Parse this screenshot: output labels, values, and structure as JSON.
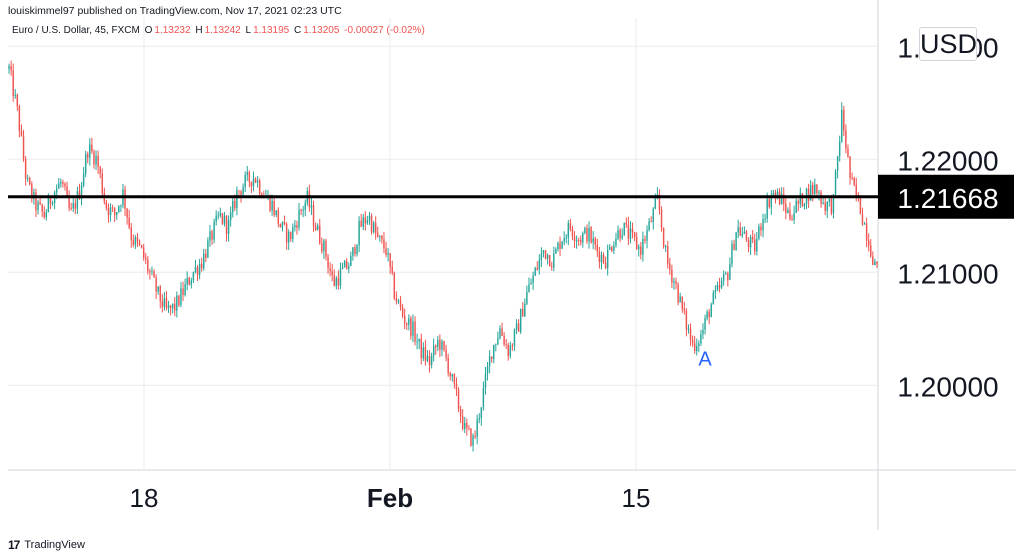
{
  "header": {
    "publisher_line": "louiskimmel97 published on TradingView.com, Nov 17, 2021 02:23 UTC"
  },
  "ohlc": {
    "symbol": "Euro / U.S. Dollar, 45, FXCM",
    "open_label": "O",
    "open": "1.13232",
    "high_label": "H",
    "high": "1.13242",
    "low_label": "L",
    "low": "1.13195",
    "close_label": "C",
    "close": "1.13205",
    "change": "-0.00027 (-0.02%)"
  },
  "currency_badge": "USD",
  "price_tag": "1.21668",
  "annotation": "A",
  "footer": {
    "brand": "TradingView",
    "logo_glyph": "17"
  },
  "colors": {
    "up": "#26a69a",
    "down": "#ef5350",
    "annotation": "#2962ff",
    "hline": "#000000",
    "grid": "#e9ebef"
  },
  "chart_data": {
    "type": "candlestick",
    "title": "",
    "xlabel": "",
    "ylabel": "",
    "y_axis_labels": [
      "1.23000",
      "1.22000",
      "1.21000",
      "1.20000"
    ],
    "y_ticks": [
      1.23,
      1.22,
      1.21,
      1.2
    ],
    "x_tick_labels": [
      "18",
      "Feb",
      "15"
    ],
    "ylim": [
      1.1925,
      1.2325
    ],
    "horizontal_line": {
      "value": 1.21668,
      "label": "1.21668"
    },
    "annotation": {
      "text": "A",
      "near_value": 1.203
    },
    "price_path": [
      1.228,
      1.224,
      1.218,
      1.216,
      1.215,
      1.217,
      1.218,
      1.215,
      1.217,
      1.221,
      1.22,
      1.216,
      1.215,
      1.217,
      1.213,
      1.212,
      1.21,
      1.208,
      1.2065,
      1.207,
      1.2085,
      1.21,
      1.211,
      1.213,
      1.215,
      1.214,
      1.217,
      1.218,
      1.2185,
      1.217,
      1.216,
      1.214,
      1.213,
      1.215,
      1.2165,
      1.214,
      1.212,
      1.209,
      1.21,
      1.211,
      1.214,
      1.215,
      1.213,
      1.212,
      1.208,
      1.206,
      1.205,
      1.203,
      1.202,
      1.204,
      1.202,
      1.199,
      1.196,
      1.195,
      1.199,
      1.203,
      1.205,
      1.203,
      1.205,
      1.208,
      1.21,
      1.212,
      1.211,
      1.213,
      1.214,
      1.213,
      1.2135,
      1.212,
      1.211,
      1.213,
      1.214,
      1.213,
      1.212,
      1.214,
      1.2165,
      1.211,
      1.209,
      1.206,
      1.2035,
      1.2045,
      1.207,
      1.2085,
      1.21,
      1.214,
      1.213,
      1.212,
      1.215,
      1.217,
      1.2165,
      1.215,
      1.216,
      1.217,
      1.2175,
      1.216,
      1.216,
      1.224,
      1.218,
      1.216,
      1.213,
      1.21
    ]
  }
}
